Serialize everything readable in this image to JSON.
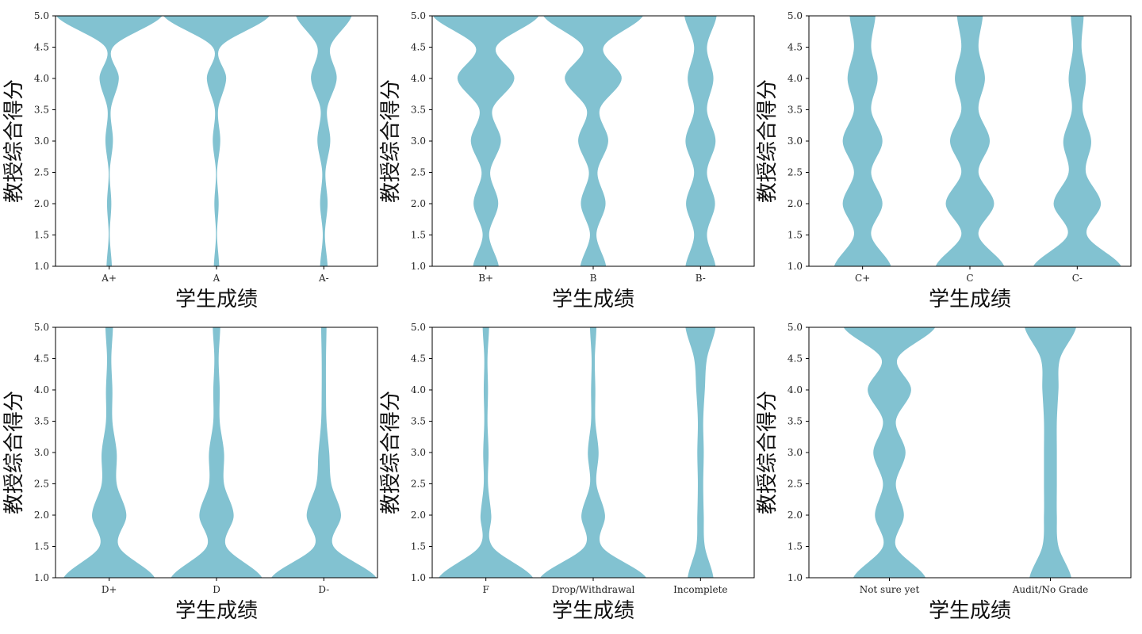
{
  "figure": {
    "violin_color": "#82c2d1",
    "axis_color": "#000000"
  },
  "chart_data": [
    {
      "type": "violin",
      "xlabel": "学生成绩",
      "ylabel": "教授综合得分",
      "ylim": [
        1.0,
        5.0
      ],
      "yticks": [
        "1.0",
        "1.5",
        "2.0",
        "2.5",
        "3.0",
        "3.5",
        "4.0",
        "4.5",
        "5.0"
      ],
      "categories": [
        "A+",
        "A",
        "A-"
      ],
      "density_y": [
        1.0,
        1.5,
        2.0,
        2.5,
        3.0,
        3.5,
        4.0,
        4.5,
        5.0
      ],
      "half_widths": [
        [
          0.05,
          0.01,
          0.04,
          0.01,
          0.07,
          0.03,
          0.18,
          0.07,
          0.99
        ],
        [
          0.05,
          0.01,
          0.04,
          0.01,
          0.07,
          0.03,
          0.18,
          0.07,
          0.99
        ],
        [
          0.07,
          0.02,
          0.07,
          0.03,
          0.12,
          0.06,
          0.24,
          0.12,
          0.52
        ]
      ]
    },
    {
      "type": "violin",
      "xlabel": "学生成绩",
      "ylabel": "教授综合得分",
      "ylim": [
        1.0,
        5.0
      ],
      "yticks": [
        "1.0",
        "1.5",
        "2.0",
        "2.5",
        "3.0",
        "3.5",
        "4.0",
        "4.5",
        "5.0"
      ],
      "categories": [
        "B+",
        "B",
        "B-"
      ],
      "density_y": [
        1.0,
        1.5,
        2.0,
        2.5,
        3.0,
        3.5,
        4.0,
        4.5,
        5.0
      ],
      "half_widths": [
        [
          0.24,
          0.06,
          0.23,
          0.08,
          0.28,
          0.12,
          0.53,
          0.19,
          0.99
        ],
        [
          0.24,
          0.06,
          0.23,
          0.08,
          0.28,
          0.12,
          0.53,
          0.19,
          0.93
        ],
        [
          0.28,
          0.12,
          0.27,
          0.12,
          0.28,
          0.12,
          0.24,
          0.12,
          0.3
        ]
      ]
    },
    {
      "type": "violin",
      "xlabel": "学生成绩",
      "ylabel": "教授综合得分",
      "ylim": [
        1.0,
        5.0
      ],
      "yticks": [
        "1.0",
        "1.5",
        "2.0",
        "2.5",
        "3.0",
        "3.5",
        "4.0",
        "4.5",
        "5.0"
      ],
      "categories": [
        "C+",
        "C",
        "C-"
      ],
      "density_y": [
        1.0,
        1.5,
        2.0,
        2.5,
        3.0,
        3.5,
        4.0,
        4.5,
        5.0
      ],
      "half_widths": [
        [
          0.53,
          0.16,
          0.37,
          0.16,
          0.37,
          0.16,
          0.28,
          0.16,
          0.24
        ],
        [
          0.64,
          0.16,
          0.45,
          0.16,
          0.37,
          0.16,
          0.28,
          0.16,
          0.24
        ],
        [
          0.82,
          0.18,
          0.44,
          0.16,
          0.26,
          0.1,
          0.16,
          0.08,
          0.12
        ]
      ]
    },
    {
      "type": "violin",
      "xlabel": "学生成绩",
      "ylabel": "教授综合得分",
      "ylim": [
        1.0,
        5.0
      ],
      "yticks": [
        "1.0",
        "1.5",
        "2.0",
        "2.5",
        "3.0",
        "3.5",
        "4.0",
        "4.5",
        "5.0"
      ],
      "categories": [
        "D+",
        "D",
        "D-"
      ],
      "density_y": [
        1.0,
        1.5,
        2.0,
        2.5,
        3.0,
        3.5,
        4.0,
        4.5,
        5.0
      ],
      "half_widths": [
        [
          0.85,
          0.18,
          0.32,
          0.14,
          0.14,
          0.06,
          0.06,
          0.04,
          0.07
        ],
        [
          0.85,
          0.18,
          0.32,
          0.14,
          0.14,
          0.06,
          0.06,
          0.04,
          0.07
        ],
        [
          0.98,
          0.18,
          0.32,
          0.14,
          0.1,
          0.05,
          0.04,
          0.04,
          0.05
        ]
      ]
    },
    {
      "type": "violin",
      "xlabel": "学生成绩",
      "ylabel": "教授综合得分",
      "ylim": [
        1.0,
        5.0
      ],
      "yticks": [
        "1.0",
        "1.5",
        "2.0",
        "2.5",
        "3.0",
        "3.5",
        "4.0",
        "4.5",
        "5.0"
      ],
      "categories": [
        "F",
        "Drop/Withdrawal",
        "Incomplete"
      ],
      "density_y": [
        1.0,
        1.5,
        2.0,
        2.5,
        3.0,
        3.5,
        4.0,
        4.5,
        5.0
      ],
      "half_widths": [
        [
          0.88,
          0.12,
          0.1,
          0.04,
          0.05,
          0.03,
          0.04,
          0.03,
          0.06
        ],
        [
          0.99,
          0.16,
          0.22,
          0.06,
          0.1,
          0.04,
          0.04,
          0.03,
          0.06
        ],
        [
          0.24,
          0.08,
          0.06,
          0.05,
          0.06,
          0.05,
          0.08,
          0.12,
          0.28
        ]
      ]
    },
    {
      "type": "violin",
      "xlabel": "学生成绩",
      "ylabel": "教授综合得分",
      "ylim": [
        1.0,
        5.0
      ],
      "yticks": [
        "1.0",
        "1.5",
        "2.0",
        "2.5",
        "3.0",
        "3.5",
        "4.0",
        "4.5",
        "5.0"
      ],
      "categories": [
        "Not sure yet",
        "Audit/No Grade"
      ],
      "density_y": [
        1.0,
        1.5,
        2.0,
        2.5,
        3.0,
        3.5,
        4.0,
        4.5,
        5.0
      ],
      "half_widths": [
        [
          0.45,
          0.08,
          0.18,
          0.08,
          0.2,
          0.08,
          0.27,
          0.1,
          0.57
        ],
        [
          0.26,
          0.1,
          0.08,
          0.08,
          0.08,
          0.08,
          0.1,
          0.12,
          0.32
        ]
      ]
    }
  ]
}
